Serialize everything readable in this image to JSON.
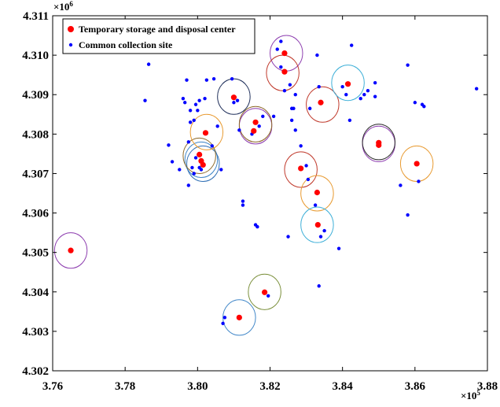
{
  "chart_data": {
    "type": "scatter",
    "title": "",
    "xlabel": "",
    "ylabel": "",
    "xlim": [
      376000,
      388000
    ],
    "ylim": [
      4302000,
      4311000
    ],
    "x_ticks": [
      "3.76",
      "3.78",
      "3.80",
      "3.82",
      "3.84",
      "3.86",
      "3.88"
    ],
    "y_ticks": [
      "4.302",
      "4.303",
      "4.304",
      "4.305",
      "4.306",
      "4.307",
      "4.308",
      "4.309",
      "4.310",
      "4.311"
    ],
    "x_multiplier": "×10",
    "x_multiplier_exp": "5",
    "y_multiplier": "×10",
    "y_multiplier_exp": "6",
    "grid": false,
    "legend_position": "top-left",
    "legend": [
      {
        "label": "Temporary storage and disposal center",
        "color": "#ff0000",
        "marker": "large-dot"
      },
      {
        "label": "Common collection site",
        "color": "#0000ff",
        "marker": "small-dot"
      }
    ],
    "circle_radius": 450,
    "series": [
      {
        "name": "Temporary storage and disposal center",
        "color": "#ff0000",
        "points": [
          [
            376500,
            4305050
          ],
          [
            380050,
            4307480
          ],
          [
            380100,
            4307320
          ],
          [
            380150,
            4307220
          ],
          [
            380220,
            4308030
          ],
          [
            381000,
            4308930
          ],
          [
            381150,
            4303350
          ],
          [
            381550,
            4308080
          ],
          [
            381600,
            4308300
          ],
          [
            381850,
            4303990
          ],
          [
            382400,
            4310050
          ],
          [
            382400,
            4309580
          ],
          [
            382850,
            4307130
          ],
          [
            383300,
            4306520
          ],
          [
            383320,
            4305700
          ],
          [
            383400,
            4308800
          ],
          [
            384150,
            4309270
          ],
          [
            385000,
            4307780
          ],
          [
            385000,
            4307720
          ],
          [
            386050,
            4307250
          ]
        ]
      },
      {
        "name": "Common collection site",
        "color": "#0000ff",
        "points": [
          [
            378550,
            4308850
          ],
          [
            378650,
            4309770
          ],
          [
            379200,
            4307720
          ],
          [
            379300,
            4307300
          ],
          [
            379500,
            4307100
          ],
          [
            379600,
            4308900
          ],
          [
            379650,
            4308800
          ],
          [
            379700,
            4309370
          ],
          [
            379750,
            4306700
          ],
          [
            379750,
            4307800
          ],
          [
            379800,
            4308300
          ],
          [
            379800,
            4308600
          ],
          [
            379850,
            4307150
          ],
          [
            379900,
            4307000
          ],
          [
            379900,
            4308350
          ],
          [
            379950,
            4307400
          ],
          [
            379950,
            4308750
          ],
          [
            380000,
            4308600
          ],
          [
            380050,
            4308850
          ],
          [
            380050,
            4307150
          ],
          [
            380100,
            4307100
          ],
          [
            380200,
            4308900
          ],
          [
            380250,
            4309370
          ],
          [
            380400,
            4307700
          ],
          [
            380450,
            4309400
          ],
          [
            380550,
            4308200
          ],
          [
            380650,
            4307100
          ],
          [
            380750,
            4303350
          ],
          [
            380700,
            4303200
          ],
          [
            380950,
            4309400
          ],
          [
            381000,
            4308800
          ],
          [
            381100,
            4308850
          ],
          [
            381150,
            4308100
          ],
          [
            381250,
            4306300
          ],
          [
            381250,
            4306200
          ],
          [
            381500,
            4308000
          ],
          [
            381600,
            4305700
          ],
          [
            381650,
            4305650
          ],
          [
            381700,
            4308200
          ],
          [
            381800,
            4308450
          ],
          [
            381950,
            4303900
          ],
          [
            382100,
            4308450
          ],
          [
            382200,
            4310150
          ],
          [
            382300,
            4310350
          ],
          [
            382300,
            4309700
          ],
          [
            382400,
            4309100
          ],
          [
            382500,
            4305400
          ],
          [
            382550,
            4309250
          ],
          [
            382600,
            4308650
          ],
          [
            382600,
            4308350
          ],
          [
            382650,
            4308650
          ],
          [
            382700,
            4309000
          ],
          [
            382700,
            4308100
          ],
          [
            382850,
            4307700
          ],
          [
            383000,
            4307200
          ],
          [
            383050,
            4306850
          ],
          [
            383100,
            4308650
          ],
          [
            383250,
            4306200
          ],
          [
            383300,
            4310000
          ],
          [
            383350,
            4309200
          ],
          [
            383350,
            4304150
          ],
          [
            383400,
            4305400
          ],
          [
            383500,
            4305550
          ],
          [
            383900,
            4305100
          ],
          [
            384000,
            4309200
          ],
          [
            384100,
            4309000
          ],
          [
            384200,
            4308350
          ],
          [
            384250,
            4310250
          ],
          [
            384500,
            4308900
          ],
          [
            384600,
            4309000
          ],
          [
            384700,
            4309100
          ],
          [
            384900,
            4309300
          ],
          [
            384900,
            4308950
          ],
          [
            385600,
            4306700
          ],
          [
            385800,
            4309750
          ],
          [
            385800,
            4305950
          ],
          [
            386000,
            4308800
          ],
          [
            386100,
            4306800
          ],
          [
            386200,
            4308750
          ],
          [
            386250,
            4308700
          ],
          [
            387700,
            4309150
          ]
        ]
      }
    ],
    "circle_colors": [
      "#8e3fb0",
      "#3f86c8",
      "#2f6fb5",
      "#8e6a2a",
      "#e89a30",
      "#1f2f5a",
      "#3f86c8",
      "#8e3fb0",
      "#8e6a2a",
      "#7a8f3a",
      "#8e3fb0",
      "#c0392b",
      "#c0392b",
      "#e89a30",
      "#3fb0d8",
      "#c0392b",
      "#3fb0d8",
      "#8e3fb0",
      "#2a2a2a",
      "#e89a30"
    ],
    "circle_centers": [
      [
        376500,
        4305050
      ],
      [
        380100,
        4307350
      ],
      [
        380150,
        4307250
      ],
      [
        380050,
        4307450
      ],
      [
        380250,
        4308050
      ],
      [
        381000,
        4308950
      ],
      [
        381150,
        4303350
      ],
      [
        381600,
        4308200
      ],
      [
        381600,
        4308250
      ],
      [
        381850,
        4304000
      ],
      [
        382450,
        4310050
      ],
      [
        382350,
        4309550
      ],
      [
        382850,
        4307100
      ],
      [
        383300,
        4306500
      ],
      [
        383300,
        4305700
      ],
      [
        383450,
        4308750
      ],
      [
        384150,
        4309300
      ],
      [
        385000,
        4307750
      ],
      [
        385000,
        4307800
      ],
      [
        386050,
        4307250
      ]
    ]
  }
}
